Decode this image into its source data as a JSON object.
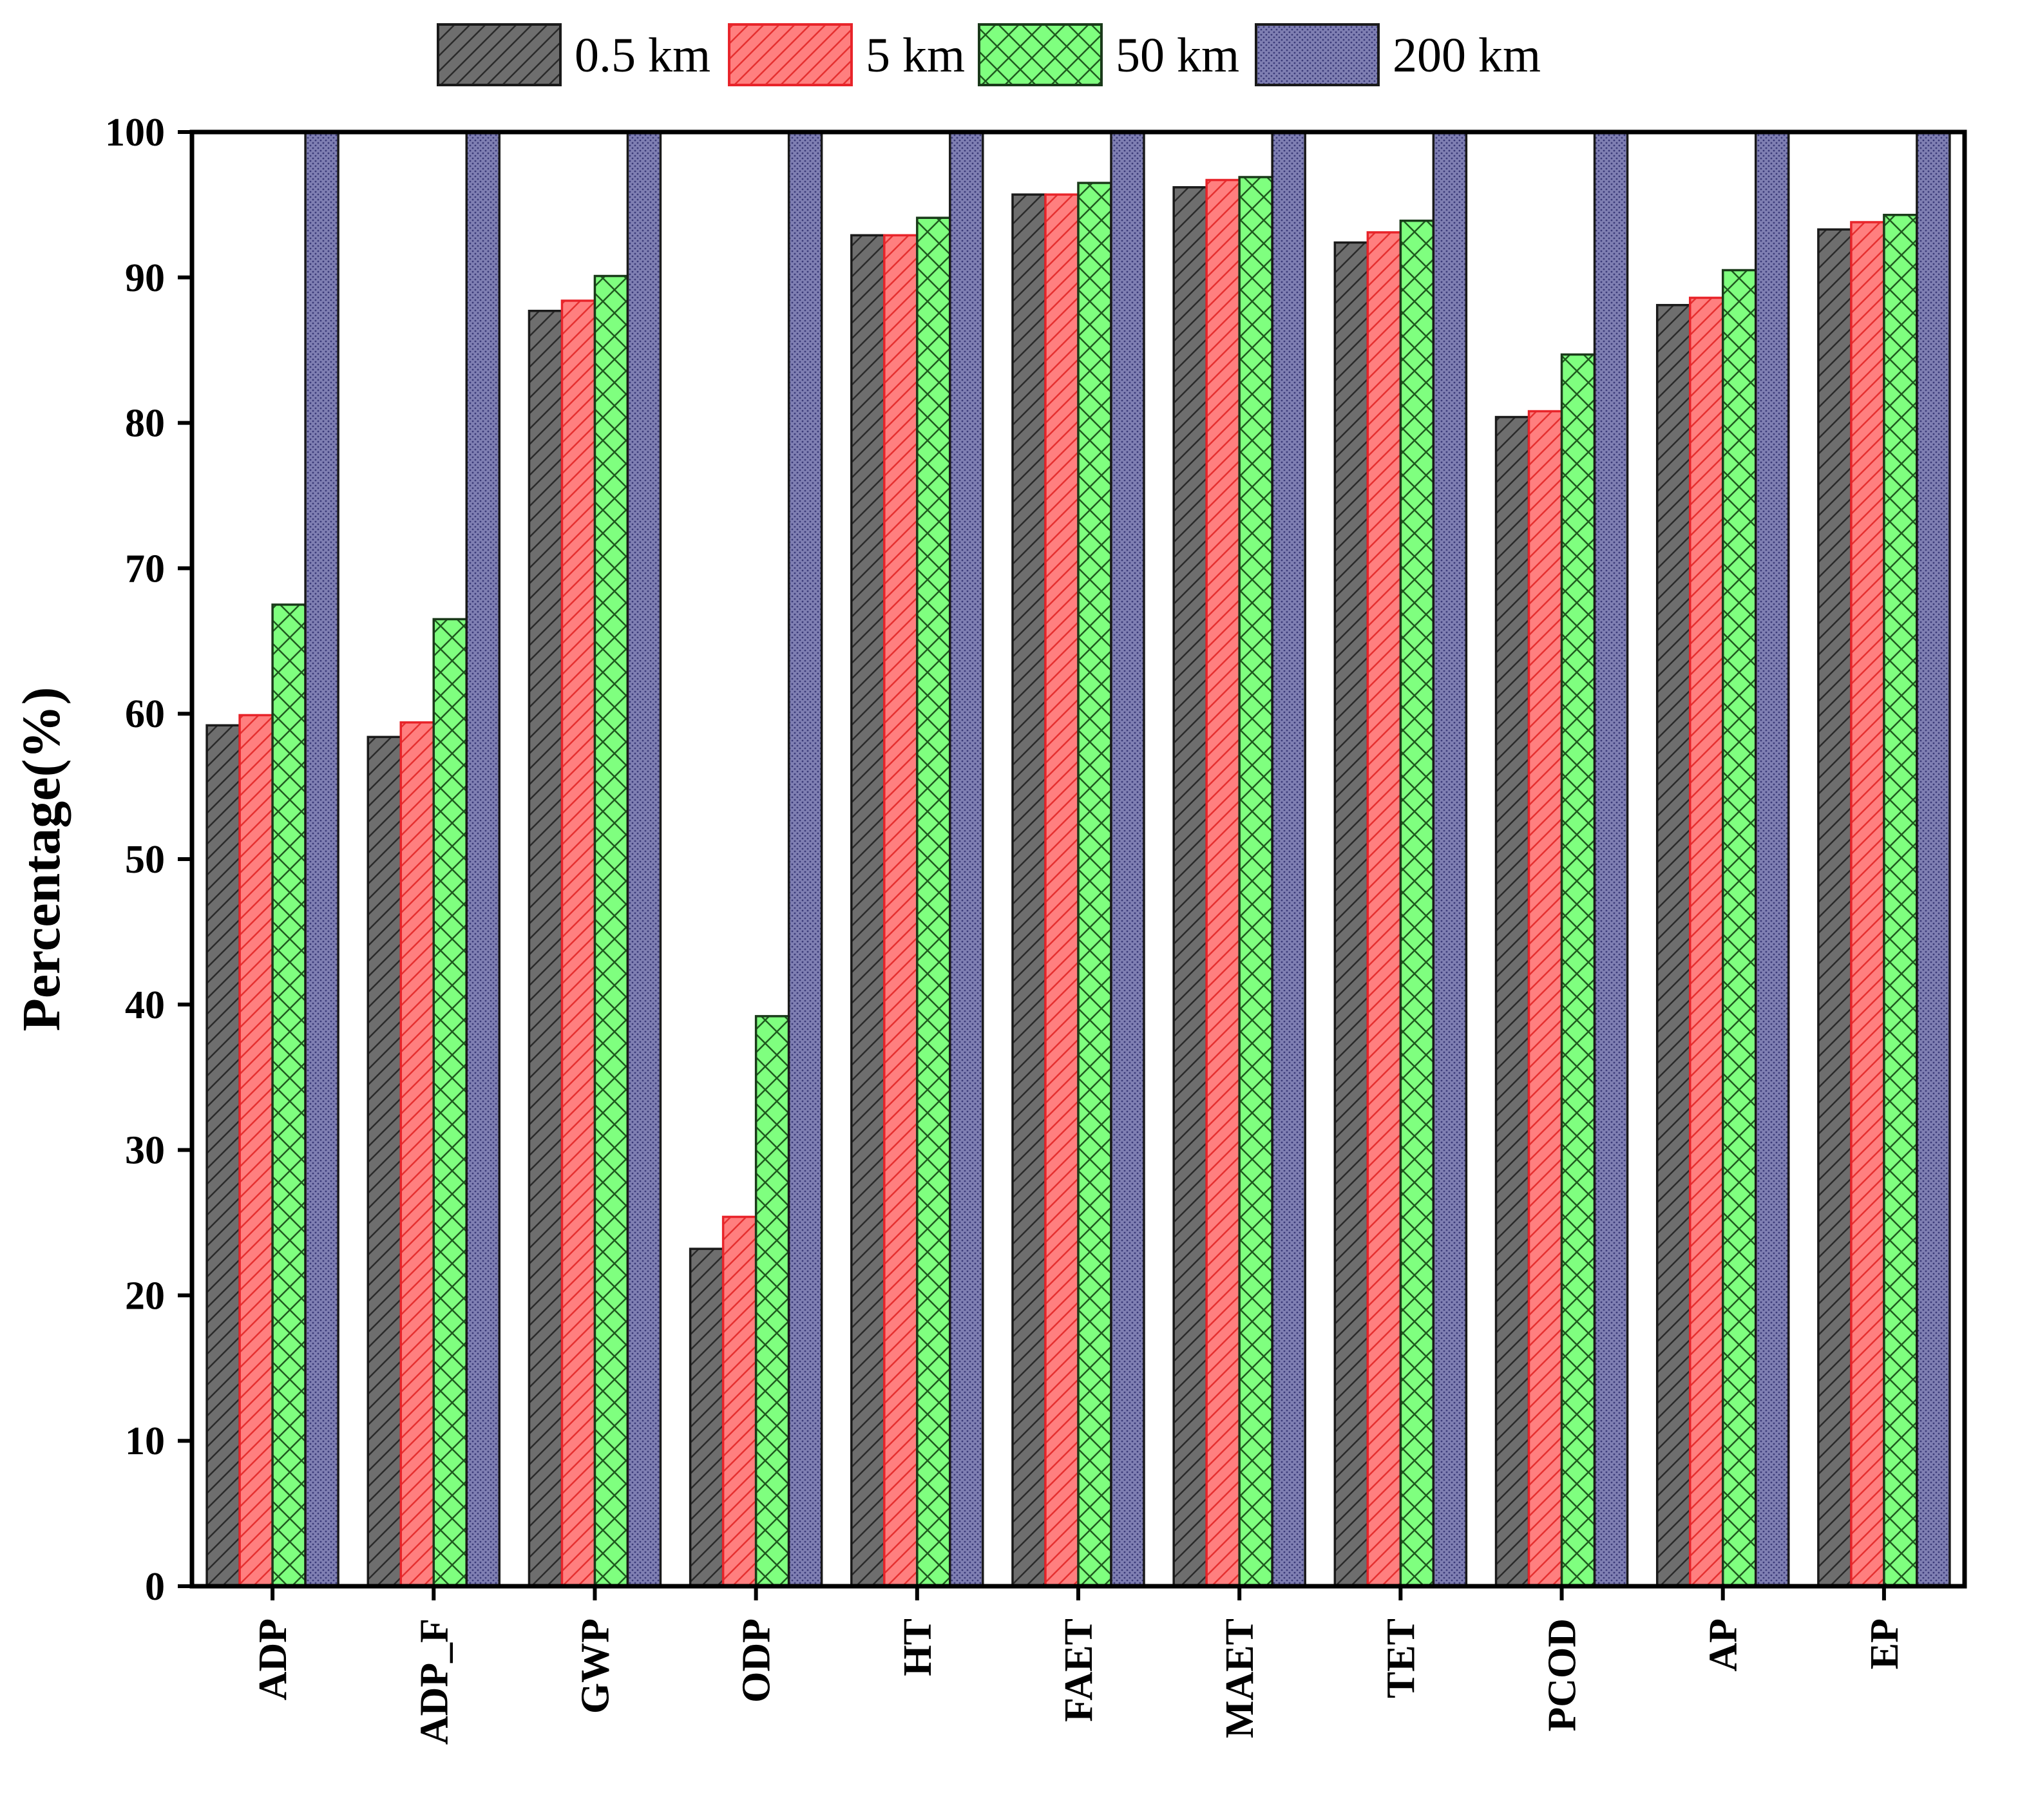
{
  "chart_data": {
    "type": "bar",
    "title": "",
    "xlabel": "",
    "ylabel": "Percentage(%)",
    "ylim": [
      0,
      100
    ],
    "yticks": [
      0,
      10,
      20,
      30,
      40,
      50,
      60,
      70,
      80,
      90,
      100
    ],
    "grid": false,
    "legend_position": "top-center",
    "categories": [
      "ADP",
      "ADP_F",
      "GWP",
      "ODP",
      "HT",
      "FAET",
      "MAET",
      "TET",
      "PCOD",
      "AP",
      "EP"
    ],
    "series": [
      {
        "name": "0.5 km",
        "color": "#6e6e6e",
        "pattern": "diagonal",
        "values": [
          59.2,
          58.4,
          87.7,
          23.2,
          92.9,
          95.7,
          96.2,
          92.4,
          80.4,
          88.1,
          93.3
        ]
      },
      {
        "name": "5 km",
        "color": "#ff7f7f",
        "pattern": "diagonal",
        "values": [
          59.9,
          59.4,
          88.4,
          25.4,
          92.9,
          95.7,
          96.7,
          93.1,
          80.8,
          88.6,
          93.8
        ]
      },
      {
        "name": "50 km",
        "color": "#7fff7f",
        "pattern": "crosshatch",
        "values": [
          67.5,
          66.5,
          90.1,
          39.2,
          94.1,
          96.5,
          96.9,
          93.9,
          84.7,
          90.5,
          94.3
        ]
      },
      {
        "name": "200 km",
        "color": "#7f7fb2",
        "pattern": "dots",
        "values": [
          100,
          100,
          100,
          100,
          100,
          100,
          100,
          100,
          100,
          100,
          100
        ]
      }
    ]
  }
}
